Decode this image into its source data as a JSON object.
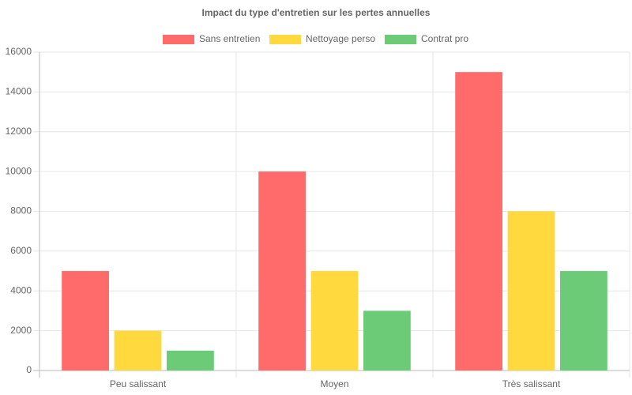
{
  "chart_data": {
    "type": "bar",
    "title": "Impact du type d'entretien sur les pertes annuelles",
    "categories": [
      "Peu salissant",
      "Moyen",
      "Très salissant"
    ],
    "series": [
      {
        "name": "Sans entretien",
        "color": "#ff6b6b",
        "values": [
          5000,
          10000,
          15000
        ]
      },
      {
        "name": "Nettoyage perso",
        "color": "#ffd93d",
        "values": [
          2000,
          5000,
          8000
        ]
      },
      {
        "name": "Contrat pro",
        "color": "#6bcb77",
        "values": [
          1000,
          3000,
          5000
        ]
      }
    ],
    "ylim": [
      0,
      16000
    ],
    "yticks": [
      0,
      2000,
      4000,
      6000,
      8000,
      10000,
      12000,
      14000,
      16000
    ],
    "grid": true
  }
}
